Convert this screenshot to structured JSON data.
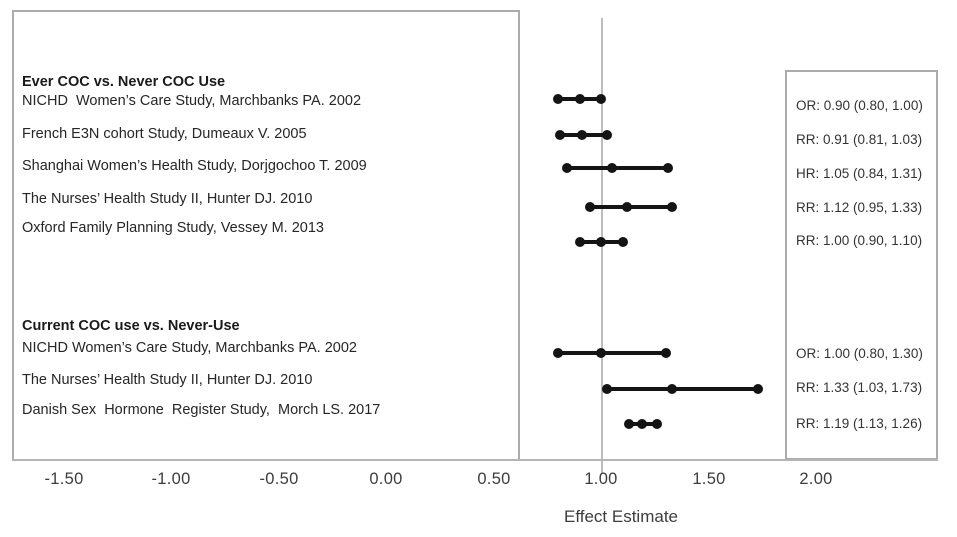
{
  "chart_data": {
    "type": "forest",
    "title": "",
    "xlabel": "Effect Estimate",
    "ylabel": "",
    "xlim": [
      -1.74,
      2.57
    ],
    "grid": false,
    "legend": false,
    "reference_line": 1.0,
    "x_ticks": [
      {
        "label": "-1.50",
        "value": -1.5
      },
      {
        "label": "-1.00",
        "value": -1.0
      },
      {
        "label": "-0.50",
        "value": -0.5
      },
      {
        "label": "0.00",
        "value": 0.0
      },
      {
        "label": "0.50",
        "value": 0.5
      },
      {
        "label": "1.00",
        "value": 1.0
      },
      {
        "label": "1.50",
        "value": 1.5
      },
      {
        "label": "2.00",
        "value": 2.0
      }
    ],
    "groups": [
      {
        "header": "Ever COC vs. Never COC Use",
        "studies": [
          {
            "label": "NICHD  Women’s Care Study, Marchbanks PA. 2002",
            "measure": "OR",
            "estimate": 0.9,
            "ci_low": 0.8,
            "ci_high": 1.0,
            "estimate_label": "OR: 0.90 (0.80, 1.00)"
          },
          {
            "label": "French E3N cohort Study, Dumeaux V. 2005",
            "measure": "RR",
            "estimate": 0.91,
            "ci_low": 0.81,
            "ci_high": 1.03,
            "estimate_label": "RR: 0.91 (0.81, 1.03)"
          },
          {
            "label": "Shanghai Women’s Health Study, Dorjgochoo T. 2009",
            "measure": "HR",
            "estimate": 1.05,
            "ci_low": 0.84,
            "ci_high": 1.31,
            "estimate_label": "HR: 1.05 (0.84, 1.31)"
          },
          {
            "label": "The Nurses’ Health Study II, Hunter DJ. 2010",
            "measure": "RR",
            "estimate": 1.12,
            "ci_low": 0.95,
            "ci_high": 1.33,
            "estimate_label": "RR: 1.12 (0.95, 1.33)"
          },
          {
            "label": "Oxford Family Planning Study, Vessey M. 2013",
            "measure": "RR",
            "estimate": 1.0,
            "ci_low": 0.9,
            "ci_high": 1.1,
            "estimate_label": "RR: 1.00 (0.90, 1.10)"
          }
        ]
      },
      {
        "header": "Current COC use vs. Never-Use",
        "studies": [
          {
            "label": "NICHD Women’s Care Study, Marchbanks PA. 2002",
            "measure": "OR",
            "estimate": 1.0,
            "ci_low": 0.8,
            "ci_high": 1.3,
            "estimate_label": "OR: 1.00 (0.80, 1.30)"
          },
          {
            "label": "The Nurses’ Health Study II, Hunter DJ. 2010",
            "measure": "RR",
            "estimate": 1.33,
            "ci_low": 1.03,
            "ci_high": 1.73,
            "estimate_label": "RR: 1.33 (1.03, 1.73)"
          },
          {
            "label": "Danish Sex  Hormone  Register Study,  Morch LS. 2017",
            "measure": "RR",
            "estimate": 1.19,
            "ci_low": 1.13,
            "ci_high": 1.26,
            "estimate_label": "RR: 1.19 (1.13, 1.26)"
          }
        ]
      }
    ],
    "colors": {
      "marker": "#141414",
      "reference_line": "#bdbdbd",
      "axis_line": "#b5b5b5",
      "panel_border": "#ababab",
      "label_text": "#262626",
      "tick_text": "#3d3d3d"
    }
  }
}
